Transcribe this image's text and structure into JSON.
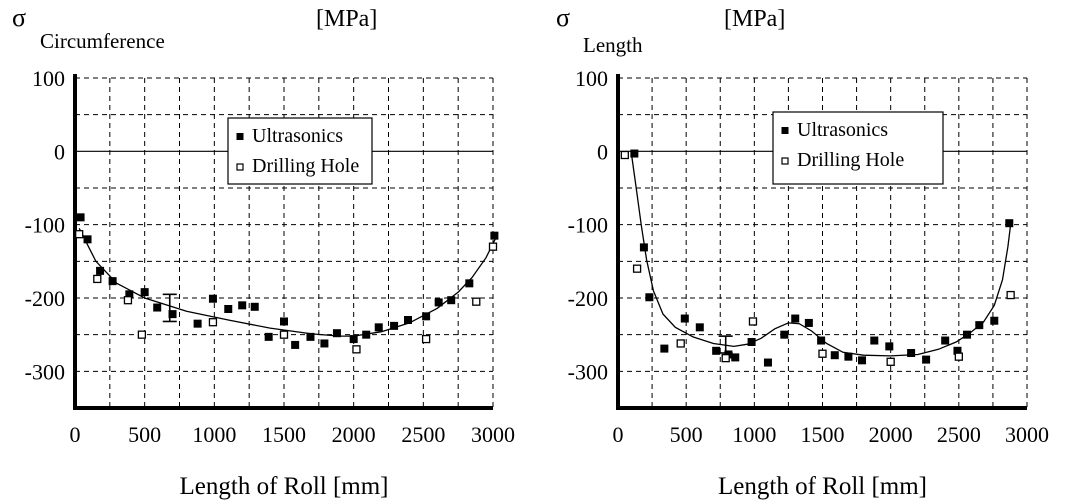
{
  "chart_data": [
    {
      "type": "scatter",
      "symbol": "σ",
      "subscript": "Circumference",
      "unit": "[MPa]",
      "xlabel": "Length of Roll [mm]",
      "xlim": [
        0,
        3000
      ],
      "ylim": [
        -350,
        100
      ],
      "xticks": [
        0,
        500,
        1000,
        1500,
        2000,
        2500,
        3000
      ],
      "yticks": [
        100,
        0,
        -100,
        -200,
        -300
      ],
      "grid": true,
      "legend_position": "upper-center",
      "series": [
        {
          "name": "Ultrasonics",
          "marker": "filled-square",
          "points": [
            [
              40,
              -90
            ],
            [
              90,
              -120
            ],
            [
              180,
              -163
            ],
            [
              270,
              -177
            ],
            [
              390,
              -195
            ],
            [
              500,
              -192
            ],
            [
              590,
              -213
            ],
            [
              700,
              -222
            ],
            [
              880,
              -235
            ],
            [
              990,
              -201
            ],
            [
              1100,
              -215
            ],
            [
              1200,
              -210
            ],
            [
              1290,
              -212
            ],
            [
              1390,
              -253
            ],
            [
              1500,
              -232
            ],
            [
              1580,
              -264
            ],
            [
              1690,
              -253
            ],
            [
              1790,
              -262
            ],
            [
              1880,
              -248
            ],
            [
              2000,
              -256
            ],
            [
              2090,
              -250
            ],
            [
              2180,
              -240
            ],
            [
              2290,
              -238
            ],
            [
              2390,
              -230
            ],
            [
              2520,
              -225
            ],
            [
              2610,
              -206
            ],
            [
              2700,
              -203
            ],
            [
              2830,
              -180
            ],
            [
              3010,
              -115
            ]
          ]
        },
        {
          "name": "Drilling Hole",
          "marker": "open-square",
          "points": [
            [
              30,
              -113
            ],
            [
              160,
              -174
            ],
            [
              380,
              -203
            ],
            [
              480,
              -250
            ],
            [
              990,
              -233
            ],
            [
              1500,
              -250
            ],
            [
              2020,
              -270
            ],
            [
              2520,
              -256
            ],
            [
              2880,
              -205
            ],
            [
              3000,
              -130
            ]
          ]
        }
      ],
      "fit_curve": [
        [
          30,
          -105
        ],
        [
          150,
          -150
        ],
        [
          300,
          -180
        ],
        [
          500,
          -200
        ],
        [
          800,
          -218
        ],
        [
          1100,
          -230
        ],
        [
          1400,
          -241
        ],
        [
          1700,
          -249
        ],
        [
          1900,
          -252
        ],
        [
          2000,
          -252
        ],
        [
          2200,
          -246
        ],
        [
          2400,
          -234
        ],
        [
          2600,
          -214
        ],
        [
          2750,
          -192
        ],
        [
          2850,
          -172
        ],
        [
          2950,
          -145
        ],
        [
          3020,
          -118
        ]
      ],
      "error_bar": {
        "x": 680,
        "low": -232,
        "high": -195
      }
    },
    {
      "type": "scatter",
      "symbol": "σ",
      "subscript": "Length",
      "unit": "[MPa]",
      "xlabel": "Length of Roll [mm]",
      "xlim": [
        0,
        3000
      ],
      "ylim": [
        -350,
        100
      ],
      "xticks": [
        0,
        500,
        1000,
        1500,
        2000,
        2500,
        3000
      ],
      "yticks": [
        100,
        0,
        -100,
        -200,
        -300
      ],
      "grid": true,
      "legend_position": "upper-right",
      "series": [
        {
          "name": "Ultrasonics",
          "marker": "filled-square",
          "points": [
            [
              120,
              -3
            ],
            [
              190,
              -131
            ],
            [
              230,
              -199
            ],
            [
              340,
              -269
            ],
            [
              490,
              -228
            ],
            [
              600,
              -240
            ],
            [
              720,
              -272
            ],
            [
              810,
              -277
            ],
            [
              860,
              -281
            ],
            [
              980,
              -260
            ],
            [
              1100,
              -288
            ],
            [
              1220,
              -250
            ],
            [
              1300,
              -228
            ],
            [
              1400,
              -234
            ],
            [
              1490,
              -258
            ],
            [
              1590,
              -278
            ],
            [
              1690,
              -280
            ],
            [
              1790,
              -285
            ],
            [
              1880,
              -258
            ],
            [
              1990,
              -266
            ],
            [
              2150,
              -275
            ],
            [
              2260,
              -284
            ],
            [
              2400,
              -258
            ],
            [
              2490,
              -272
            ],
            [
              2560,
              -250
            ],
            [
              2650,
              -237
            ],
            [
              2760,
              -231
            ],
            [
              2870,
              -98
            ]
          ]
        },
        {
          "name": "Drilling Hole",
          "marker": "open-square",
          "points": [
            [
              50,
              -5
            ],
            [
              140,
              -160
            ],
            [
              460,
              -262
            ],
            [
              790,
              -282
            ],
            [
              990,
              -232
            ],
            [
              1500,
              -276
            ],
            [
              2000,
              -287
            ],
            [
              2500,
              -280
            ],
            [
              2880,
              -196
            ]
          ]
        }
      ],
      "fit_curve": [
        [
          100,
          -5
        ],
        [
          130,
          -45
        ],
        [
          170,
          -100
        ],
        [
          210,
          -148
        ],
        [
          260,
          -190
        ],
        [
          330,
          -222
        ],
        [
          420,
          -240
        ],
        [
          550,
          -253
        ],
        [
          700,
          -262
        ],
        [
          850,
          -266
        ],
        [
          950,
          -263
        ],
        [
          1050,
          -255
        ],
        [
          1150,
          -242
        ],
        [
          1250,
          -234
        ],
        [
          1330,
          -235
        ],
        [
          1420,
          -245
        ],
        [
          1530,
          -262
        ],
        [
          1650,
          -274
        ],
        [
          1800,
          -278
        ],
        [
          2000,
          -279
        ],
        [
          2200,
          -277
        ],
        [
          2350,
          -270
        ],
        [
          2480,
          -260
        ],
        [
          2580,
          -248
        ],
        [
          2680,
          -233
        ],
        [
          2760,
          -210
        ],
        [
          2820,
          -175
        ],
        [
          2860,
          -130
        ],
        [
          2880,
          -100
        ]
      ],
      "error_bar": {
        "x": 790,
        "low": -275,
        "high": -252
      }
    }
  ]
}
